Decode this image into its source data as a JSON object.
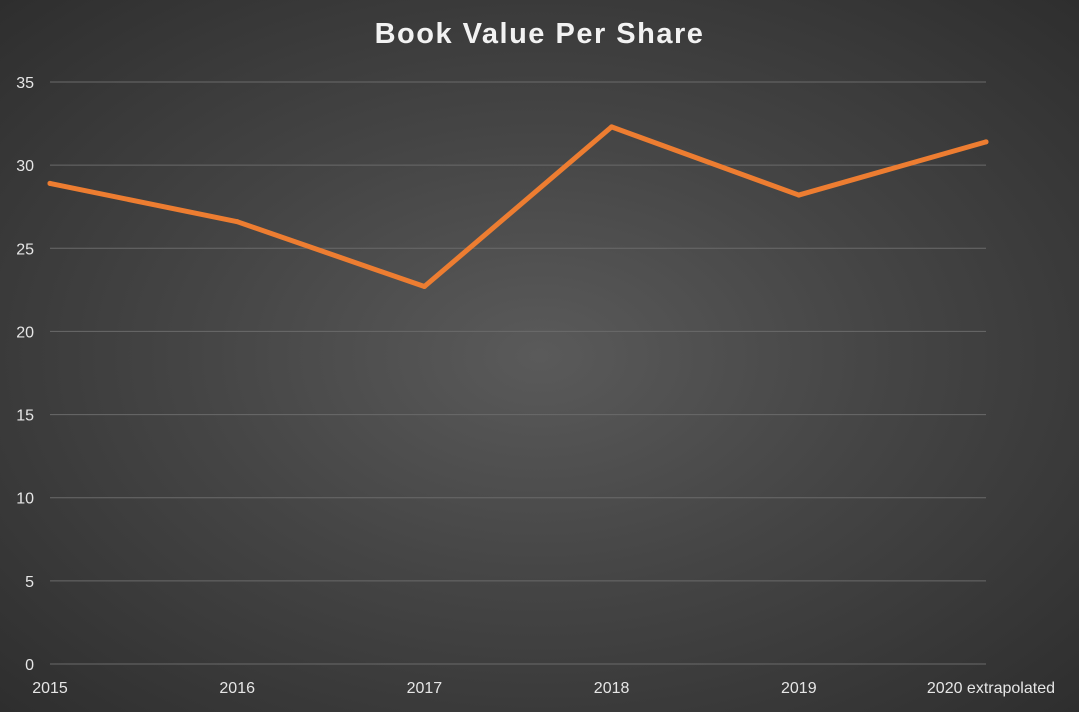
{
  "chart_data": {
    "type": "line",
    "title": "Book Value Per Share",
    "xlabel": "",
    "ylabel": "",
    "categories": [
      "2015",
      "2016",
      "2017",
      "2018",
      "2019",
      "2020 extrapolated"
    ],
    "series": [
      {
        "values": [
          28.9,
          26.6,
          22.7,
          32.3,
          28.2,
          31.4
        ],
        "color": "#ed7d31"
      }
    ],
    "ylim": [
      0,
      35
    ],
    "yticks": [
      "0",
      "5",
      "10",
      "15",
      "20",
      "25",
      "30",
      "35"
    ],
    "grid": true,
    "legend": "none"
  }
}
